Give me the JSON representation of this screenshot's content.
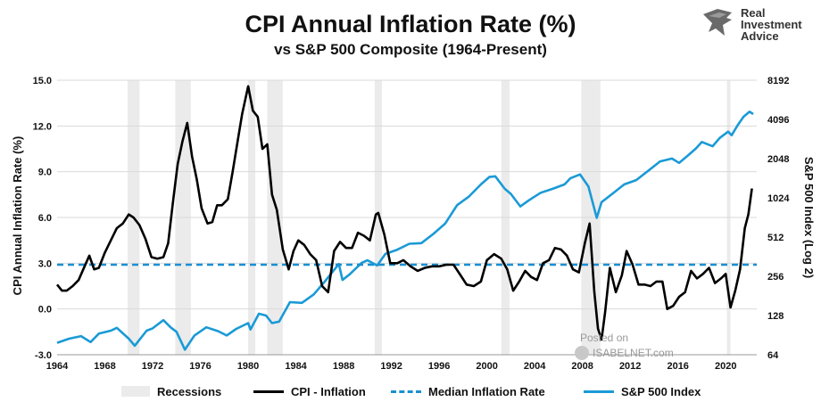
{
  "header": {
    "title": "CPI Annual Inflation Rate (%)",
    "subtitle": "vs S&P 500 Composite (1964-Present)"
  },
  "logo": {
    "line1": "Real",
    "line2": "Investment",
    "line3": "Advice",
    "icon": "eagle-icon"
  },
  "watermark": {
    "posted": "Posted on",
    "site": "ISABELNET.com",
    "icon": "globe-icon"
  },
  "colors": {
    "cpi": "#000000",
    "median": "#1a8fd1",
    "sp500": "#1a9ad6",
    "recession": "#ebebeb",
    "grid": "#d9d9d9"
  },
  "chart_data": {
    "type": "line",
    "title": "CPI Annual Inflation Rate (%)",
    "subtitle": "vs S&P 500 Composite (1964-Present)",
    "xlabel": "",
    "ylabel": "CPI Annual Inflation Rate (%)",
    "y2label": "S&P 500 Index (Log 2)",
    "xlim": [
      1964,
      2022.6
    ],
    "ylim": [
      -3.0,
      15.0
    ],
    "y2lim": [
      64,
      8192
    ],
    "y2scale": "log2",
    "xticks": [
      1964,
      1968,
      1972,
      1976,
      1980,
      1984,
      1988,
      1992,
      1996,
      2000,
      2004,
      2008,
      2012,
      2016,
      2020
    ],
    "xtick_labels": [
      "1964",
      "1968",
      "1972",
      "1976",
      "1980",
      "1984",
      "1988",
      "1992",
      "1996",
      "2000",
      "2004",
      "2008",
      "2012",
      "2016",
      "2020"
    ],
    "yticks": [
      -3.0,
      0.0,
      3.0,
      6.0,
      9.0,
      12.0,
      15.0
    ],
    "ytick_labels": [
      "-3.0",
      "0.0",
      "3.0",
      "6.0",
      "9.0",
      "12.0",
      "15.0"
    ],
    "y2ticks": [
      64,
      128,
      256,
      512,
      1024,
      2048,
      4096,
      8192
    ],
    "y2tick_labels": [
      "64",
      "128",
      "256",
      "512",
      "1024",
      "2048",
      "4096",
      "8192"
    ],
    "grid": "horizontal",
    "legend_position": "bottom",
    "recessions": [
      [
        1969.9,
        1970.9
      ],
      [
        1973.9,
        1975.2
      ],
      [
        1980.0,
        1980.6
      ],
      [
        1981.6,
        1982.9
      ],
      [
        1990.6,
        1991.2
      ],
      [
        2001.2,
        2001.9
      ],
      [
        2007.9,
        2009.5
      ],
      [
        2020.1,
        2020.4
      ]
    ],
    "series": [
      {
        "name": "CPI - Inflation",
        "axis": "left",
        "x": [
          1964.0,
          1964.4,
          1964.8,
          1965.3,
          1965.8,
          1966.3,
          1966.7,
          1967.1,
          1967.5,
          1968.0,
          1968.5,
          1969.0,
          1969.5,
          1970.0,
          1970.4,
          1970.9,
          1971.4,
          1971.9,
          1972.4,
          1972.9,
          1973.3,
          1973.7,
          1974.1,
          1974.5,
          1974.9,
          1975.3,
          1975.7,
          1976.1,
          1976.6,
          1977.0,
          1977.4,
          1977.8,
          1978.3,
          1978.7,
          1979.1,
          1979.5,
          1980.0,
          1980.4,
          1980.8,
          1981.2,
          1981.6,
          1982.0,
          1982.4,
          1982.9,
          1983.4,
          1983.8,
          1984.2,
          1984.7,
          1985.2,
          1985.7,
          1986.2,
          1986.7,
          1987.2,
          1987.7,
          1988.2,
          1988.7,
          1989.2,
          1989.7,
          1990.2,
          1990.7,
          1990.9,
          1991.4,
          1991.9,
          1992.5,
          1993.0,
          1993.6,
          1994.2,
          1994.8,
          1995.4,
          1996.0,
          1996.6,
          1997.2,
          1997.8,
          1998.3,
          1998.9,
          1999.5,
          2000.0,
          2000.6,
          2001.2,
          2001.7,
          2002.2,
          2002.7,
          2003.2,
          2003.7,
          2004.2,
          2004.7,
          2005.2,
          2005.7,
          2006.2,
          2006.7,
          2007.2,
          2007.7,
          2008.2,
          2008.6,
          2009.0,
          2009.3,
          2009.6,
          2009.9,
          2010.3,
          2010.8,
          2011.3,
          2011.7,
          2012.2,
          2012.7,
          2013.2,
          2013.7,
          2014.2,
          2014.7,
          2015.1,
          2015.6,
          2016.1,
          2016.6,
          2017.1,
          2017.6,
          2018.1,
          2018.6,
          2019.1,
          2019.6,
          2020.0,
          2020.4,
          2020.8,
          2021.2,
          2021.6,
          2021.9,
          2022.2
        ],
        "values": [
          1.6,
          1.2,
          1.2,
          1.5,
          1.9,
          2.8,
          3.5,
          2.6,
          2.7,
          3.7,
          4.5,
          5.3,
          5.6,
          6.2,
          6.0,
          5.5,
          4.6,
          3.4,
          3.3,
          3.4,
          4.3,
          7.0,
          9.5,
          11.0,
          12.2,
          10.0,
          8.5,
          6.6,
          5.6,
          5.7,
          6.8,
          6.8,
          7.2,
          9.0,
          10.9,
          12.8,
          14.6,
          13.0,
          12.6,
          10.5,
          10.8,
          7.5,
          6.5,
          3.9,
          2.6,
          3.8,
          4.5,
          4.2,
          3.6,
          3.2,
          1.5,
          1.1,
          3.8,
          4.4,
          4.0,
          4.0,
          5.0,
          4.8,
          4.5,
          6.2,
          6.3,
          4.9,
          3.0,
          3.0,
          3.2,
          2.8,
          2.5,
          2.7,
          2.8,
          2.8,
          2.9,
          2.9,
          2.2,
          1.6,
          1.5,
          1.8,
          3.2,
          3.6,
          3.3,
          2.6,
          1.2,
          1.8,
          2.5,
          2.1,
          1.9,
          3.0,
          3.2,
          4.0,
          3.9,
          3.5,
          2.6,
          2.4,
          4.3,
          5.6,
          1.1,
          -1.3,
          -2.0,
          -0.2,
          2.7,
          1.1,
          2.2,
          3.8,
          2.9,
          1.6,
          1.6,
          1.5,
          1.8,
          1.8,
          0.0,
          0.2,
          0.8,
          1.1,
          2.5,
          2.0,
          2.3,
          2.7,
          1.7,
          2.0,
          2.3,
          0.1,
          1.2,
          2.6,
          5.3,
          6.2,
          7.9
        ]
      },
      {
        "name": "Median Inflation Rate",
        "axis": "left",
        "style": "dashed",
        "x": [
          1964,
          2022.6
        ],
        "values": [
          2.9,
          2.9
        ]
      },
      {
        "name": "S&P 500 Index",
        "axis": "right",
        "x": [
          1964.0,
          1965.0,
          1966.0,
          1966.8,
          1967.5,
          1968.5,
          1969.0,
          1970.0,
          1970.5,
          1971.5,
          1972.0,
          1972.9,
          1973.5,
          1974.0,
          1974.7,
          1975.5,
          1976.5,
          1977.5,
          1978.2,
          1979.0,
          1980.0,
          1980.2,
          1980.9,
          1981.5,
          1982.0,
          1982.6,
          1983.5,
          1984.5,
          1985.5,
          1986.5,
          1987.6,
          1987.9,
          1988.5,
          1989.5,
          1990.0,
          1990.8,
          1991.5,
          1992.5,
          1993.5,
          1994.5,
          1995.5,
          1996.5,
          1997.5,
          1998.5,
          1999.5,
          2000.2,
          2000.7,
          2001.5,
          2002.0,
          2002.8,
          2003.5,
          2004.5,
          2005.5,
          2006.5,
          2007.0,
          2007.8,
          2008.5,
          2009.2,
          2009.6,
          2010.5,
          2011.5,
          2012.5,
          2013.5,
          2014.5,
          2015.5,
          2016.1,
          2016.8,
          2017.5,
          2018.0,
          2018.9,
          2019.5,
          2020.2,
          2020.5,
          2021.0,
          2021.5,
          2022.0,
          2022.3
        ],
        "values": [
          79,
          85,
          89,
          80,
          93,
          98,
          103,
          85,
          75,
          98,
          102,
          118,
          104,
          96,
          70,
          90,
          104,
          97,
          90,
          101,
          112,
          100,
          132,
          128,
          112,
          115,
          162,
          160,
          186,
          238,
          318,
          240,
          265,
          325,
          340,
          310,
          380,
          410,
          455,
          460,
          540,
          650,
          900,
          1050,
          1300,
          1480,
          1500,
          1200,
          1100,
          880,
          980,
          1120,
          1200,
          1300,
          1450,
          1550,
          1250,
          720,
          950,
          1100,
          1300,
          1400,
          1650,
          1950,
          2050,
          1900,
          2150,
          2450,
          2750,
          2550,
          2950,
          3300,
          3100,
          3700,
          4300,
          4700,
          4500
        ]
      }
    ]
  },
  "legend": {
    "recessions": "Recessions",
    "cpi": "CPI - Inflation",
    "median": "Median Inflation Rate",
    "sp500": "S&P 500 Index"
  }
}
